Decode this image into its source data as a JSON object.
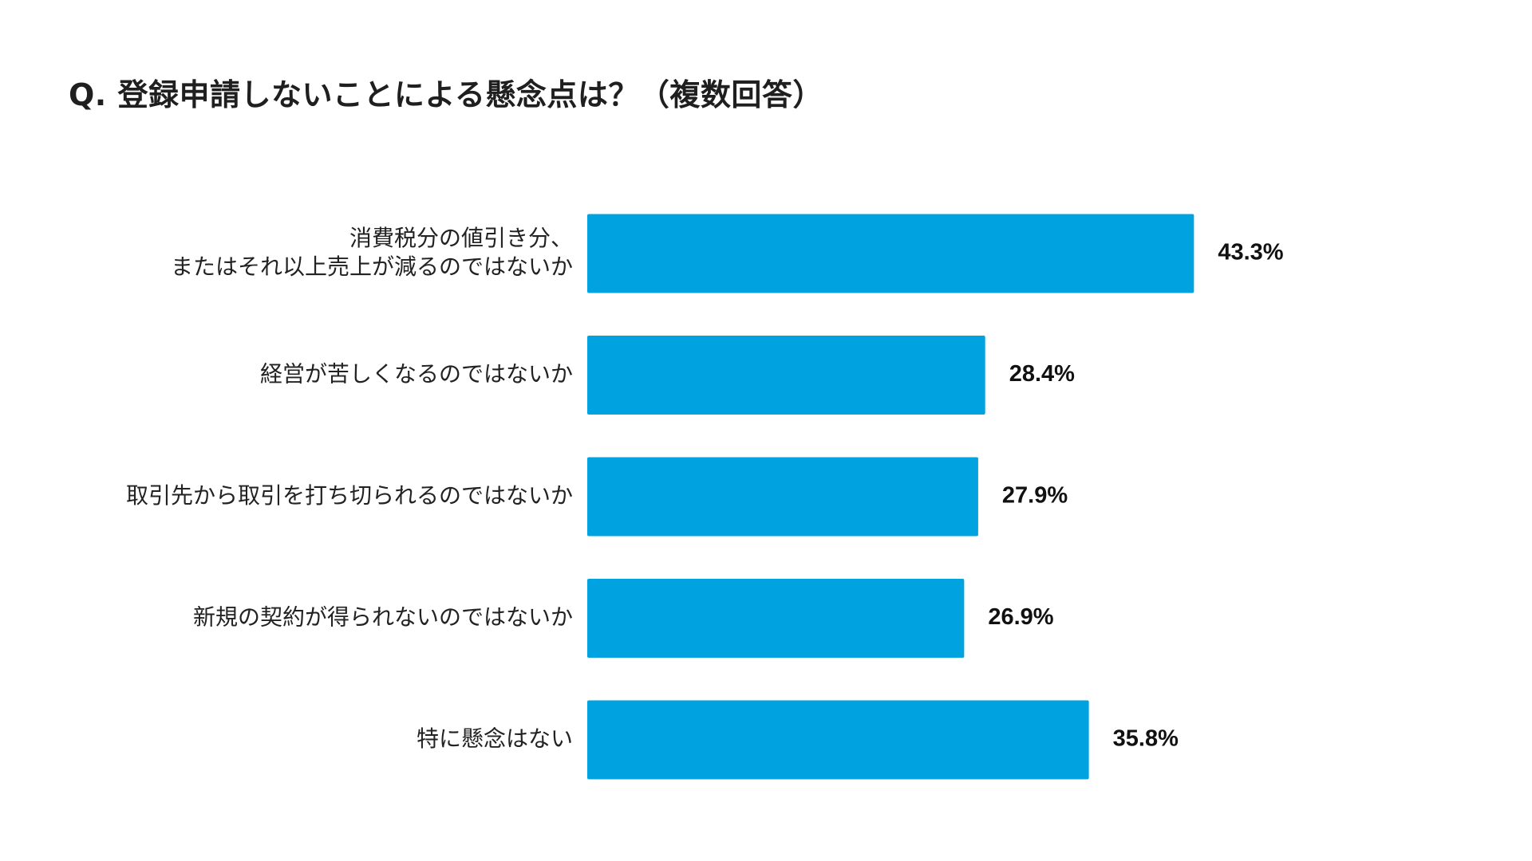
{
  "title": "Q. 登録申請しないことによる懸念点は？（複数回答）",
  "colors": {
    "bar": "#00A3E0",
    "label_text": "#222222",
    "value_text": "#111111",
    "background": "#ffffff"
  },
  "chart_data": {
    "type": "bar",
    "orientation": "horizontal",
    "title": "Q. 登録申請しないことによる懸念点は？（複数回答）",
    "categories": [
      [
        "消費税分の値引き分、",
        "またはそれ以上売上が減るのではないか"
      ],
      [
        "経営が苦しくなるのではないか"
      ],
      [
        "取引先から取引を打ち切られるのではないか"
      ],
      [
        "新規の契約が得られないのではないか"
      ],
      [
        "特に懸念はない"
      ]
    ],
    "values": [
      43.3,
      28.4,
      27.9,
      26.9,
      35.8
    ],
    "value_labels": [
      "43.3%",
      "28.4%",
      "27.9%",
      "26.9%",
      "35.8%"
    ],
    "unit": "%",
    "grid": false,
    "legend": "none"
  }
}
